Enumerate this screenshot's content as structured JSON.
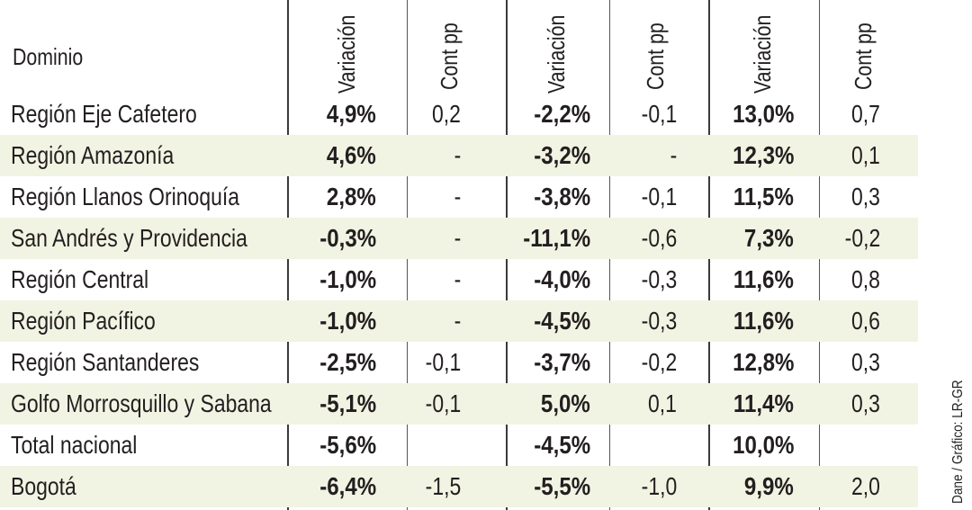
{
  "header": {
    "domain_label": "Dominio",
    "columns": [
      "Variación",
      "Cont pp",
      "Variación",
      "Cont pp",
      "Variación",
      "Cont pp"
    ]
  },
  "rows": [
    {
      "name": "Región Eje Cafetero",
      "v1": "4,9%",
      "c1": "0,2",
      "v2": "-2,2%",
      "c2": "-0,1",
      "v3": "13,0%",
      "c3": "0,7"
    },
    {
      "name": "Región Amazonía",
      "v1": "4,6%",
      "c1": "-",
      "v2": "-3,2%",
      "c2": "-",
      "v3": "12,3%",
      "c3": "0,1"
    },
    {
      "name": "Región Llanos Orinoquía",
      "v1": "2,8%",
      "c1": "-",
      "v2": "-3,8%",
      "c2": "-0,1",
      "v3": "11,5%",
      "c3": "0,3"
    },
    {
      "name": "San Andrés y Providencia",
      "v1": "-0,3%",
      "c1": "-",
      "v2": "-11,1%",
      "c2": "-0,6",
      "v3": "7,3%",
      "c3": "-0,2"
    },
    {
      "name": "Región Central",
      "v1": "-1,0%",
      "c1": "-",
      "v2": "-4,0%",
      "c2": "-0,3",
      "v3": "11,6%",
      "c3": "0,8"
    },
    {
      "name": "Región Pacífico",
      "v1": "-1,0%",
      "c1": "-",
      "v2": "-4,5%",
      "c2": "-0,3",
      "v3": "11,6%",
      "c3": "0,6"
    },
    {
      "name": "Región Santanderes",
      "v1": "-2,5%",
      "c1": "-0,1",
      "v2": "-3,7%",
      "c2": "-0,2",
      "v3": "12,8%",
      "c3": "0,3"
    },
    {
      "name": "Golfo Morrosquillo y Sabana",
      "v1": "-5,1%",
      "c1": "-0,1",
      "v2": "5,0%",
      "c2": "0,1",
      "v3": "11,4%",
      "c3": "0,3"
    },
    {
      "name": "Total nacional",
      "v1": "-5,6%",
      "c1": "",
      "v2": "-4,5%",
      "c2": "",
      "v3": "10,0%",
      "c3": ""
    },
    {
      "name": "Bogotá",
      "v1": "-6,4%",
      "c1": "-1,5",
      "v2": "-5,5%",
      "c2": "-1,0",
      "v3": "9,9%",
      "c3": "2,0"
    }
  ],
  "source": "Dane / Gráfico: LR-GR",
  "colors": {
    "row_shade": "#f2f4e3",
    "text": "#231f20"
  }
}
